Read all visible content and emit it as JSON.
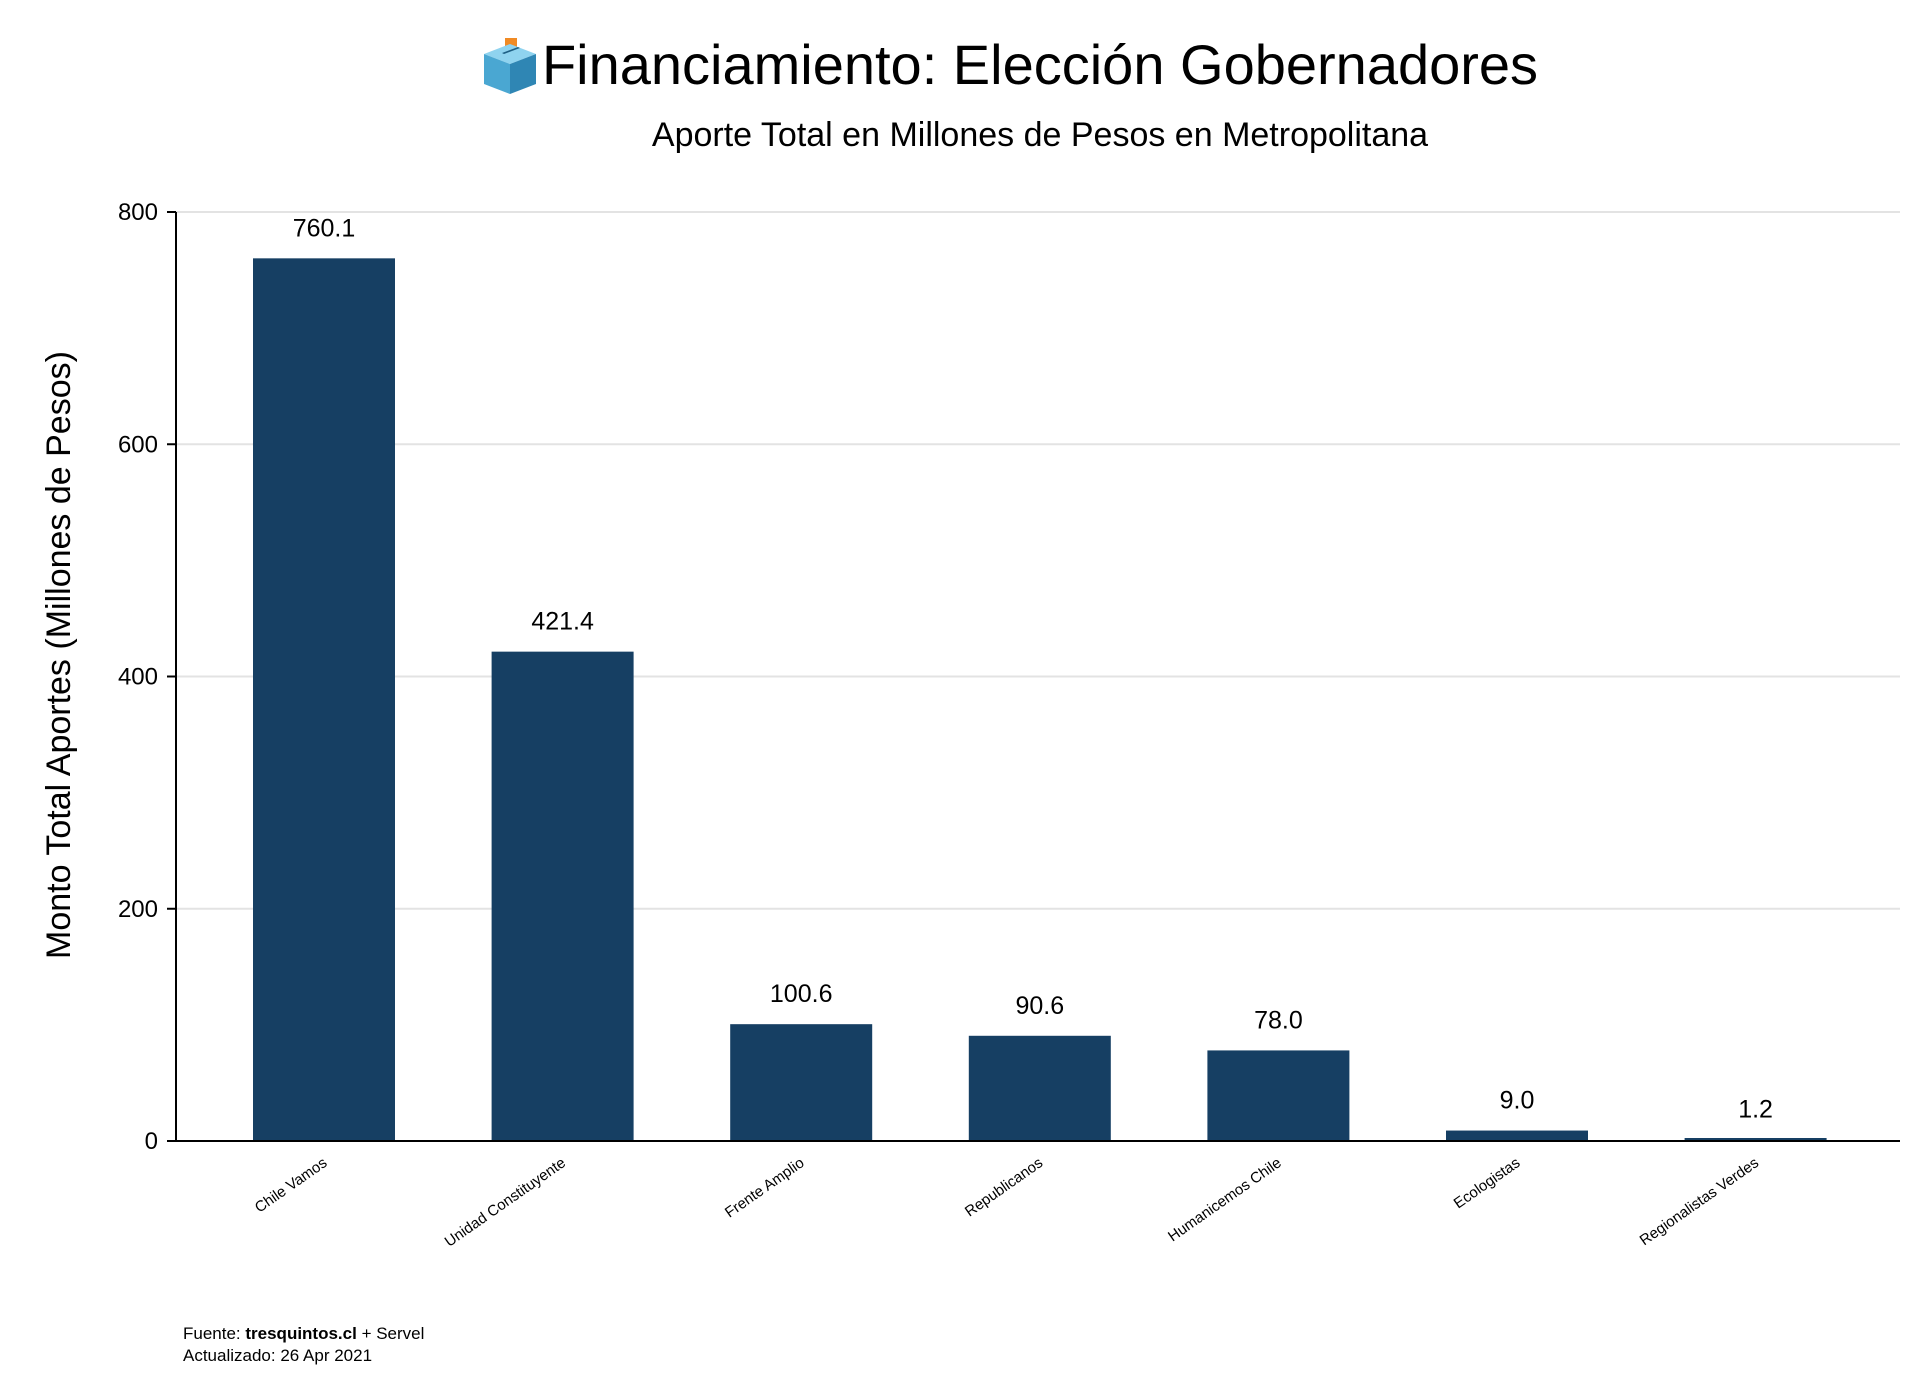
{
  "chart_data": {
    "type": "bar",
    "title": "Financiamiento: Elección Gobernadores",
    "title_icon": "ballot-box-icon",
    "subtitle": "Aporte Total en Millones de Pesos en Metropolitana",
    "xlabel": "",
    "ylabel": "Monto Total Aportes (Millones de Pesos)",
    "ylim": [
      0,
      800
    ],
    "yticks": [
      0,
      200,
      400,
      600,
      800
    ],
    "grid": true,
    "legend": "none",
    "bar_color": "#163f63",
    "categories": [
      "Chile Vamos",
      "Unidad Constituyente",
      "Frente Amplio",
      "Republicanos",
      "Humanicemos Chile",
      "Ecologistas",
      "Regionalistas Verdes"
    ],
    "values": [
      760.1,
      421.4,
      100.6,
      90.6,
      78.0,
      9.0,
      1.2
    ],
    "value_labels": [
      "760.1",
      "421.4",
      "100.6",
      "90.6",
      "78.0",
      "9.0",
      "1.2"
    ]
  },
  "source": {
    "prefix": "Fuente: ",
    "site": "tresquintos.cl",
    "suffix": " + Servel",
    "updated": "Actualizado: 26 Apr 2021"
  },
  "colors": {
    "grid": "#e3e3e3",
    "axis": "#000000",
    "icon_box": "#5ab3d9",
    "icon_ballot": "#f08a24"
  }
}
